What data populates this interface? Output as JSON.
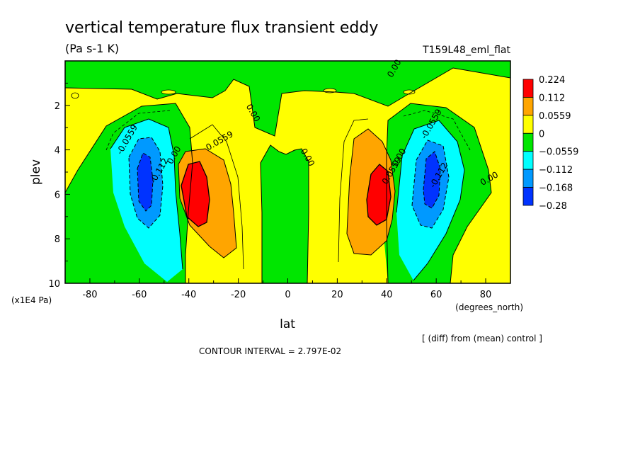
{
  "header": {
    "title": "vertical temperature flux transient eddy",
    "units": "(Pa s-1 K)",
    "run_name": "T159L48_eml_flat"
  },
  "axes": {
    "xlabel": "lat",
    "xunits": "(degrees_north)",
    "ylabel": "plev",
    "yunits": "(x1E4 Pa)"
  },
  "footer": {
    "diff_note": "[ (diff) from (mean) control ]",
    "contour_interval": "CONTOUR INTERVAL = 2.797E-02"
  },
  "colorbar": {
    "labels": [
      "0.224",
      "0.112",
      "0.0559",
      "0",
      "−0.0559",
      "−0.112",
      "−0.168",
      "−0.28"
    ],
    "colors": [
      "#ff0000",
      "#ffa500",
      "#ffff00",
      "#00e600",
      "#00ffff",
      "#0099ff",
      "#0033ff"
    ]
  },
  "chart_data": {
    "type": "heatmap",
    "x": [
      -90,
      90
    ],
    "y": [
      0,
      10
    ],
    "xlim": [
      -90,
      90
    ],
    "ylim": [
      10,
      0
    ],
    "xticks": [
      -80,
      -60,
      -40,
      -20,
      0,
      20,
      40,
      60,
      80
    ],
    "yticks": [
      2,
      4,
      6,
      8,
      10
    ],
    "levels": [
      -0.28,
      -0.168,
      -0.112,
      -0.0559,
      0,
      0.0559,
      0.112,
      0.224
    ],
    "features": [
      {
        "kind": "max",
        "lat": -37,
        "plev": 6.0,
        "value": 0.224
      },
      {
        "kind": "max",
        "lat": 37,
        "plev": 6.0,
        "value": 0.224
      },
      {
        "kind": "min",
        "lat": -58,
        "plev": 5.2,
        "value": -0.168
      },
      {
        "kind": "min",
        "lat": 60,
        "plev": 5.2,
        "value": -0.168
      }
    ],
    "contour_labels": [
      {
        "text": "-0.0559",
        "lat": -64,
        "plev": 3.6
      },
      {
        "text": "-0.112",
        "lat": -51,
        "plev": 5.0
      },
      {
        "text": "0.00",
        "lat": -45,
        "plev": 4.3
      },
      {
        "text": "0.0559",
        "lat": -27,
        "plev": 3.7
      },
      {
        "text": "0.00",
        "lat": -15,
        "plev": 2.4
      },
      {
        "text": "0.00",
        "lat": 7,
        "plev": 4.4
      },
      {
        "text": "0.00",
        "lat": 44,
        "plev": 0.4
      },
      {
        "text": "0.00",
        "lat": 46,
        "plev": 4.4
      },
      {
        "text": "0.0559",
        "lat": 43,
        "plev": 5.0
      },
      {
        "text": "-0.0559",
        "lat": 59,
        "plev": 2.9
      },
      {
        "text": "-0.112",
        "lat": 62,
        "plev": 5.2
      },
      {
        "text": "0.00",
        "lat": 82,
        "plev": 5.4
      }
    ],
    "grid": false
  }
}
